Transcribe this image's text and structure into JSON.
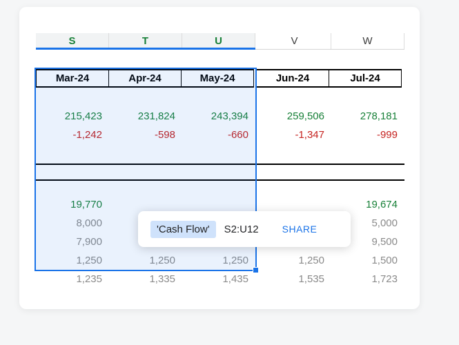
{
  "colors": {
    "accent": "#1a73e8",
    "green": "#188038",
    "red": "#c5221f",
    "gray": "#8a8a8a"
  },
  "columns": [
    {
      "letter": "S",
      "selected": true
    },
    {
      "letter": "T",
      "selected": true
    },
    {
      "letter": "U",
      "selected": true
    },
    {
      "letter": "V",
      "selected": false
    },
    {
      "letter": "W",
      "selected": false
    }
  ],
  "month_headers": [
    "Mar-24",
    "Apr-24",
    "May-24",
    "Jun-24",
    "Jul-24"
  ],
  "rows": [
    {
      "type": "empty",
      "color": "",
      "cells": [
        "",
        "",
        "",
        "",
        ""
      ]
    },
    {
      "type": "data",
      "color": "green",
      "cells": [
        "215,423",
        "231,824",
        "243,394",
        "259,506",
        "278,181"
      ]
    },
    {
      "type": "data",
      "color": "red",
      "cells": [
        "-1,242",
        "-598",
        "-660",
        "-1,347",
        "-999"
      ]
    },
    {
      "type": "empty",
      "color": "",
      "cells": [
        "",
        "",
        "",
        "",
        ""
      ]
    },
    {
      "type": "sep",
      "color": "",
      "cells": [
        "",
        "",
        "",
        "",
        ""
      ]
    },
    {
      "type": "empty-sm",
      "color": "",
      "cells": [
        "",
        "",
        "",
        "",
        ""
      ]
    },
    {
      "type": "data",
      "color": "green",
      "cells": [
        "19,770",
        "",
        "",
        "",
        "19,674"
      ]
    },
    {
      "type": "data",
      "color": "gray",
      "cells": [
        "8,000",
        "",
        "",
        "",
        "5,000"
      ]
    },
    {
      "type": "data",
      "color": "gray",
      "cells": [
        "7,900",
        "",
        "",
        "",
        "9,500"
      ]
    },
    {
      "type": "data",
      "color": "gray",
      "cells": [
        "1,250",
        "1,250",
        "1,250",
        "1,250",
        "1,500"
      ]
    },
    {
      "type": "data",
      "color": "gray",
      "cells": [
        "1,235",
        "1,335",
        "1,435",
        "1,535",
        "1,723"
      ]
    }
  ],
  "tooltip": {
    "sheet_name": "'Cash Flow'",
    "range": "S2:U12",
    "share_label": "SHARE"
  }
}
